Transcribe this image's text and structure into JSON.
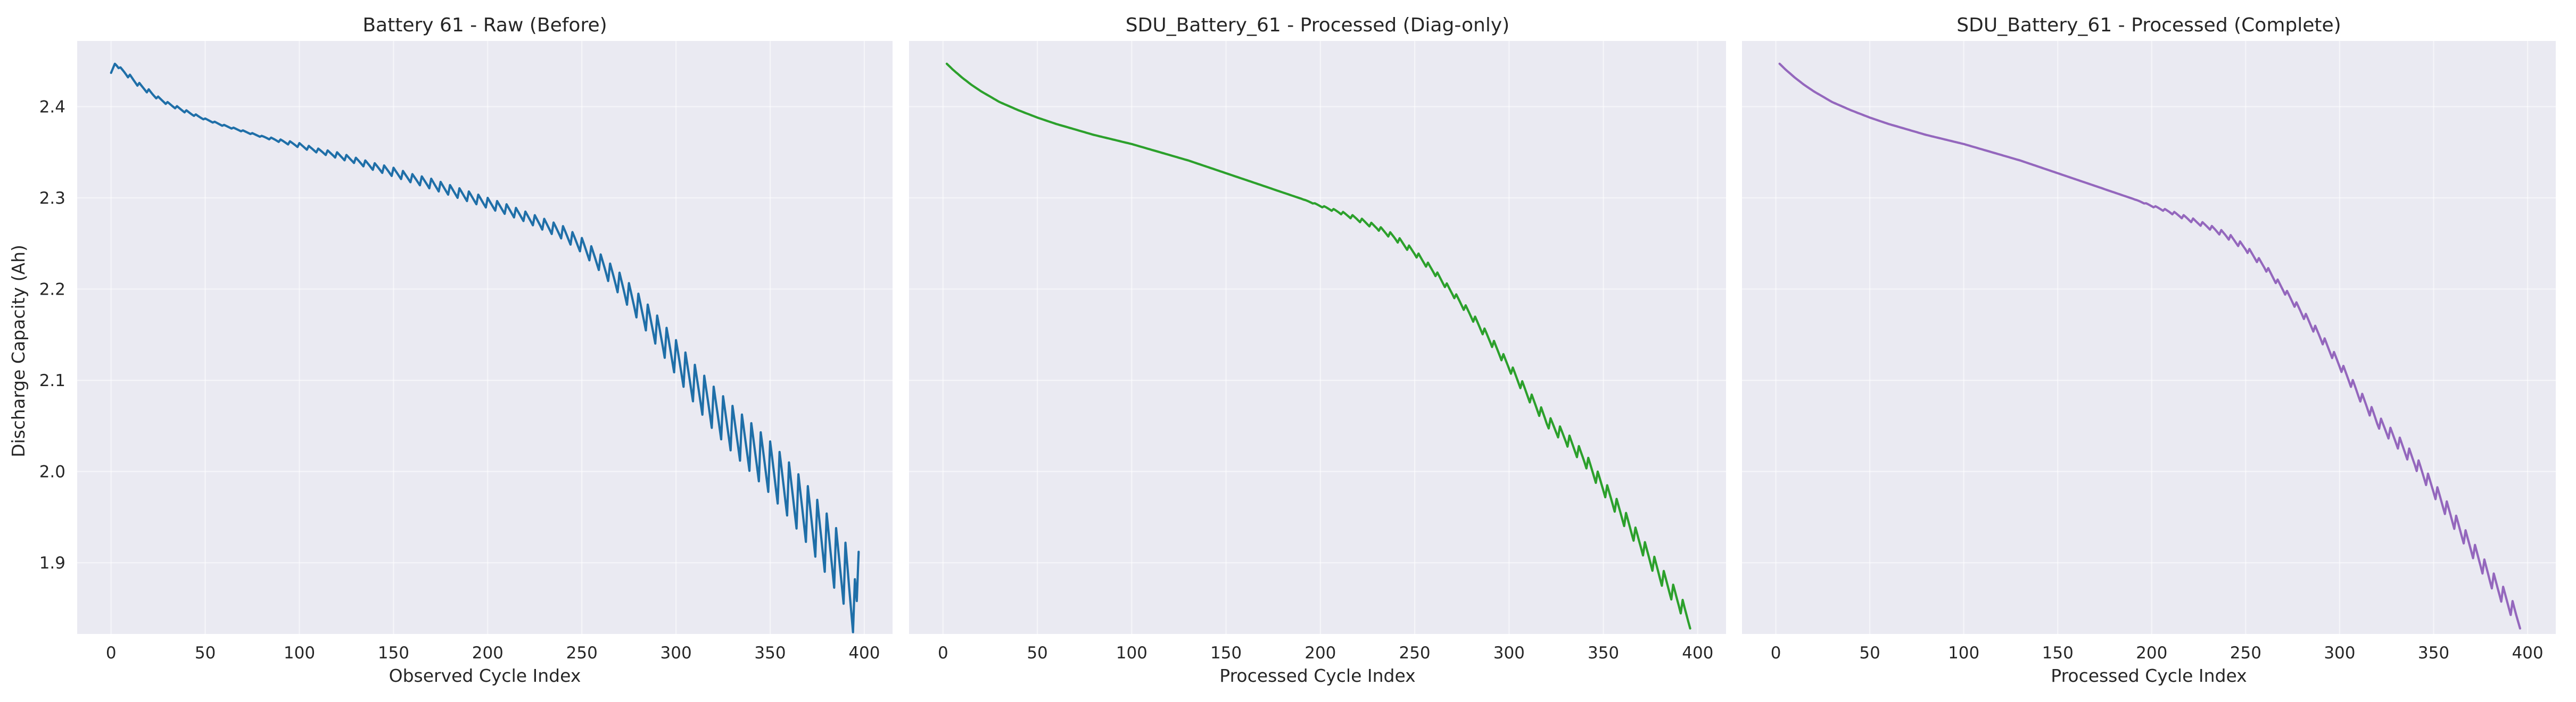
{
  "figure": {
    "y_axis_label": "Discharge Capacity (Ah)"
  },
  "chart_data": [
    {
      "type": "line",
      "title": "Battery 61 - Raw (Before)",
      "xlabel": "Observed Cycle Index",
      "ylabel": "Discharge Capacity (Ah)",
      "xlim": [
        -18,
        415
      ],
      "ylim": [
        1.822,
        2.472
      ],
      "x_ticks": [
        0,
        50,
        100,
        150,
        200,
        250,
        300,
        350,
        400
      ],
      "y_ticks": [
        1.9,
        2.0,
        2.1,
        2.2,
        2.3,
        2.4
      ],
      "grid": true,
      "series": [
        {
          "color": "#1f6fa8",
          "x": [
            0,
            2,
            5,
            10,
            15,
            20,
            25,
            30,
            40,
            50,
            60,
            70,
            80,
            90,
            100,
            110,
            120,
            130,
            140,
            150,
            160,
            170,
            180,
            190,
            200,
            210,
            220,
            230,
            240,
            250,
            260,
            270,
            280,
            290,
            300,
            310,
            320,
            330,
            340,
            350,
            360,
            370,
            380,
            390,
            396
          ],
          "y": [
            2.437,
            2.447,
            2.441,
            2.432,
            2.423,
            2.416,
            2.409,
            2.403,
            2.394,
            2.386,
            2.379,
            2.373,
            2.367,
            2.362,
            2.357,
            2.351,
            2.346,
            2.34,
            2.333,
            2.327,
            2.32,
            2.314,
            2.307,
            2.3,
            2.293,
            2.286,
            2.278,
            2.269,
            2.26,
            2.246,
            2.226,
            2.203,
            2.177,
            2.15,
            2.12,
            2.09,
            2.063,
            2.04,
            2.019,
            1.997,
            1.972,
            1.944,
            1.912,
            1.878,
            1.834
          ],
          "oscillation_amplitude": [
            0,
            0,
            0.002,
            0.003,
            0.003,
            0.003,
            0.002,
            0.002,
            0.002,
            0.001,
            0.001,
            0.001,
            0.001,
            0.002,
            0.003,
            0.003,
            0.004,
            0.004,
            0.005,
            0.006,
            0.006,
            0.007,
            0.007,
            0.007,
            0.007,
            0.007,
            0.007,
            0.008,
            0.009,
            0.01,
            0.012,
            0.015,
            0.018,
            0.021,
            0.024,
            0.027,
            0.03,
            0.032,
            0.034,
            0.036,
            0.038,
            0.04,
            0.042,
            0.044,
            0.04
          ],
          "oscillation_period": 5,
          "last_point": [
            397,
            1.912
          ]
        }
      ]
    },
    {
      "type": "line",
      "title": "SDU_Battery_61 - Processed (Diag-only)",
      "xlabel": "Processed Cycle Index",
      "ylabel": "",
      "xlim": [
        -18,
        415
      ],
      "ylim": [
        1.822,
        2.472
      ],
      "x_ticks": [
        0,
        50,
        100,
        150,
        200,
        250,
        300,
        350,
        400
      ],
      "y_ticks": [
        1.9,
        2.0,
        2.1,
        2.2,
        2.3,
        2.4
      ],
      "grid": true,
      "series": [
        {
          "color": "#2ca02c",
          "x": [
            2,
            5,
            10,
            15,
            20,
            25,
            30,
            40,
            50,
            60,
            70,
            80,
            90,
            100,
            110,
            120,
            130,
            140,
            150,
            160,
            170,
            180,
            190,
            200,
            210,
            220,
            230,
            240,
            250,
            260,
            270,
            280,
            290,
            300,
            310,
            320,
            330,
            340,
            350,
            360,
            370,
            380,
            390,
            396
          ],
          "y": [
            2.447,
            2.441,
            2.432,
            2.424,
            2.417,
            2.411,
            2.405,
            2.396,
            2.388,
            2.381,
            2.375,
            2.369,
            2.364,
            2.359,
            2.353,
            2.347,
            2.341,
            2.334,
            2.327,
            2.32,
            2.313,
            2.306,
            2.299,
            2.291,
            2.284,
            2.276,
            2.267,
            2.255,
            2.239,
            2.219,
            2.195,
            2.17,
            2.143,
            2.114,
            2.083,
            2.054,
            2.035,
            2.012,
            1.981,
            1.95,
            1.918,
            1.885,
            1.855,
            1.834
          ],
          "oscillation_amplitude": [
            0,
            0,
            0,
            0,
            0,
            0,
            0,
            0,
            0,
            0,
            0,
            0,
            0,
            0,
            0,
            0,
            0,
            0,
            0,
            0,
            0,
            0,
            0,
            0.001,
            0.002,
            0.003,
            0.003,
            0.004,
            0.004,
            0.004,
            0.004,
            0.005,
            0.006,
            0.006,
            0.007,
            0.008,
            0.009,
            0.009,
            0.01,
            0.011,
            0.011,
            0.012,
            0.012,
            0.01
          ],
          "oscillation_period": 5
        }
      ]
    },
    {
      "type": "line",
      "title": "SDU_Battery_61 - Processed (Complete)",
      "xlabel": "Processed Cycle Index",
      "ylabel": "",
      "xlim": [
        -18,
        415
      ],
      "ylim": [
        1.822,
        2.472
      ],
      "x_ticks": [
        0,
        50,
        100,
        150,
        200,
        250,
        300,
        350,
        400
      ],
      "y_ticks": [
        1.9,
        2.0,
        2.1,
        2.2,
        2.3,
        2.4
      ],
      "grid": true,
      "series": [
        {
          "color": "#9467bd",
          "x": [
            2,
            5,
            10,
            15,
            20,
            25,
            30,
            40,
            50,
            60,
            70,
            80,
            90,
            100,
            110,
            120,
            130,
            140,
            150,
            160,
            170,
            180,
            190,
            200,
            210,
            220,
            230,
            240,
            250,
            260,
            270,
            280,
            290,
            300,
            310,
            320,
            330,
            340,
            350,
            360,
            370,
            380,
            390,
            396
          ],
          "y": [
            2.447,
            2.441,
            2.432,
            2.424,
            2.417,
            2.411,
            2.405,
            2.396,
            2.388,
            2.381,
            2.375,
            2.369,
            2.364,
            2.359,
            2.353,
            2.347,
            2.341,
            2.334,
            2.327,
            2.32,
            2.313,
            2.306,
            2.299,
            2.291,
            2.284,
            2.276,
            2.268,
            2.258,
            2.244,
            2.224,
            2.199,
            2.173,
            2.146,
            2.116,
            2.084,
            2.054,
            2.033,
            2.009,
            1.979,
            1.947,
            1.915,
            1.882,
            1.853,
            1.834
          ],
          "oscillation_amplitude": [
            0,
            0,
            0,
            0,
            0,
            0,
            0,
            0,
            0,
            0,
            0,
            0,
            0,
            0,
            0,
            0,
            0,
            0,
            0,
            0,
            0,
            0,
            0,
            0.001,
            0.002,
            0.003,
            0.003,
            0.004,
            0.004,
            0.004,
            0.004,
            0.005,
            0.006,
            0.006,
            0.007,
            0.008,
            0.009,
            0.009,
            0.01,
            0.011,
            0.011,
            0.012,
            0.012,
            0.01
          ],
          "oscillation_period": 5
        }
      ]
    }
  ]
}
